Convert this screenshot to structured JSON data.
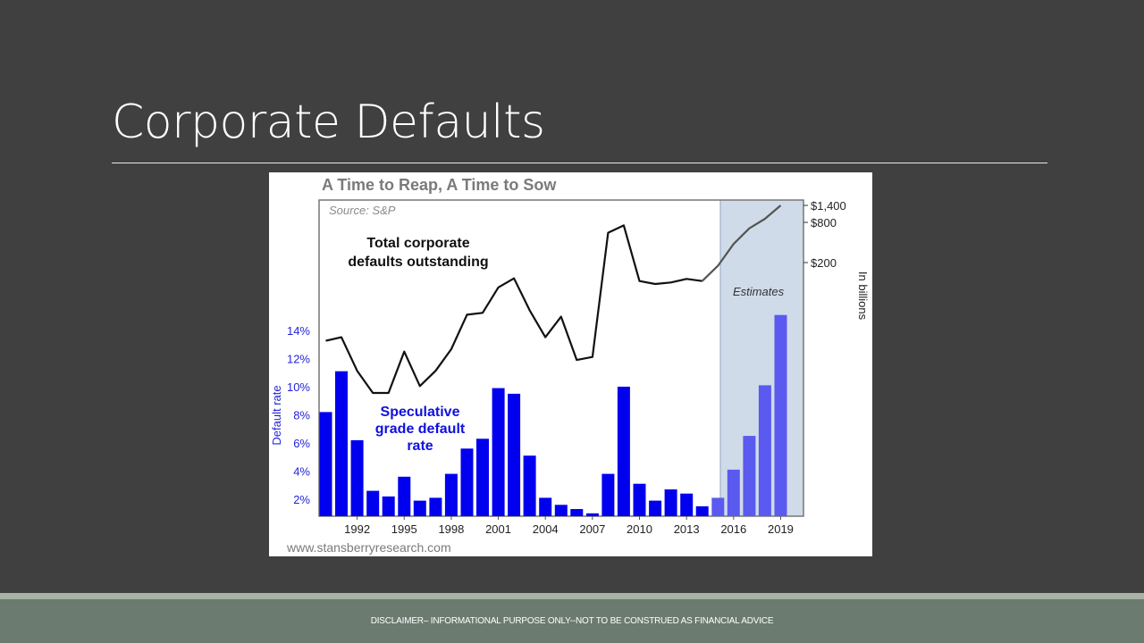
{
  "slide": {
    "title": "Corporate Defaults",
    "disclaimer": "DISCLAIMER– INFORMATIONAL PURPOSE ONLY--NOT TO BE CONSTRUED AS FINANCIAL ADVICE"
  },
  "chart_data": {
    "type": "bar",
    "title": "A Time to Reap, A Time to Sow",
    "source": "Source: S&P",
    "watermark": "www.stansberryresearch.com",
    "shaded_region_label": "Estimates",
    "shaded_region_start_year": 2015,
    "x_ticks": [
      "1992",
      "1995",
      "1998",
      "2001",
      "2004",
      "2007",
      "2010",
      "2013",
      "2016",
      "2019"
    ],
    "years": [
      1990,
      1991,
      1992,
      1993,
      1994,
      1995,
      1996,
      1997,
      1998,
      1999,
      2000,
      2001,
      2002,
      2003,
      2004,
      2005,
      2006,
      2007,
      2008,
      2009,
      2010,
      2011,
      2012,
      2013,
      2014,
      2015,
      2016,
      2017,
      2018,
      2019
    ],
    "left_axis": {
      "label": "Default rate",
      "ticks": [
        "2%",
        "4%",
        "6%",
        "8%",
        "10%",
        "12%",
        "14%"
      ],
      "tick_values": [
        2,
        4,
        6,
        8,
        10,
        12,
        14
      ],
      "range": [
        0.8,
        14.8
      ]
    },
    "right_axis": {
      "label": "In billions",
      "ticks": [
        "$200",
        "$800",
        "$1,400"
      ],
      "tick_values": [
        200,
        800,
        1400
      ]
    },
    "bar_series": {
      "name": "Speculative grade default rate",
      "annotation_lines": [
        "Speculative",
        "grade default",
        "rate"
      ],
      "values": [
        8.2,
        11.1,
        6.2,
        2.6,
        2.2,
        3.6,
        1.9,
        2.1,
        3.8,
        5.6,
        6.3,
        9.9,
        9.5,
        5.1,
        2.1,
        1.6,
        1.3,
        1.0,
        3.8,
        10.0,
        3.1,
        1.9,
        2.7,
        2.4,
        1.5,
        2.1,
        4.1,
        6.5,
        10.1,
        15.1
      ],
      "estimate_from_year": 2015,
      "color": "#0000ee",
      "estimate_color": "#5a5af0"
    },
    "line_series": {
      "name": "Total corporate defaults outstanding",
      "annotation_lines": [
        "Total corporate",
        "defaults outstanding"
      ],
      "values": [
        20,
        22,
        9,
        5,
        5,
        15,
        6,
        9,
        16,
        40,
        42,
        90,
        120,
        45,
        22,
        38,
        12,
        13,
        560,
        720,
        110,
        100,
        105,
        118,
        110,
        180,
        380,
        650,
        900,
        1400
      ],
      "color": "#111111",
      "estimate_color": "#555555"
    }
  }
}
